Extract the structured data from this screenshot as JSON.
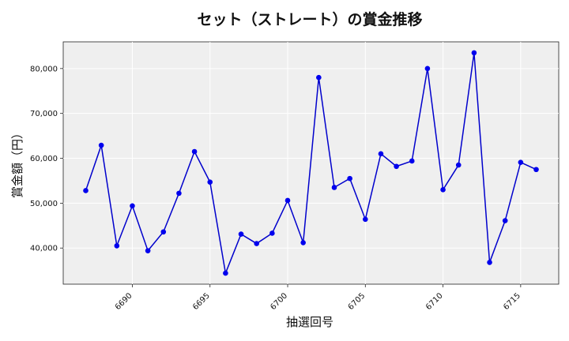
{
  "chart_data": {
    "type": "line",
    "title": "セット（ストレート）の賞金推移",
    "xlabel": "抽選回号",
    "ylabel": "賞金額（円）",
    "x": [
      6687,
      6688,
      6689,
      6690,
      6691,
      6692,
      6693,
      6694,
      6695,
      6696,
      6697,
      6698,
      6699,
      6700,
      6701,
      6702,
      6703,
      6704,
      6705,
      6706,
      6707,
      6708,
      6709,
      6710,
      6711,
      6712,
      6713,
      6714,
      6715,
      6716
    ],
    "series": [
      {
        "values": [
          52800,
          62900,
          40500,
          49400,
          39400,
          43600,
          52200,
          61500,
          54700,
          34400,
          43100,
          41000,
          43300,
          50600,
          41200,
          78000,
          53500,
          55500,
          46400,
          61000,
          58200,
          59400,
          80000,
          53000,
          58500,
          83500,
          36800,
          46100,
          59100,
          57500
        ]
      }
    ],
    "xticks": [
      6690,
      6695,
      6700,
      6705,
      6710,
      6715
    ],
    "yticks": [
      40000,
      50000,
      60000,
      70000,
      80000
    ],
    "xlim": [
      6685.55,
      6717.45
    ],
    "ylim": [
      31950,
      85950
    ],
    "grid": true,
    "line_color": "#0000cc",
    "marker_color": "#0000ee",
    "plot_bg": "#efefef"
  }
}
